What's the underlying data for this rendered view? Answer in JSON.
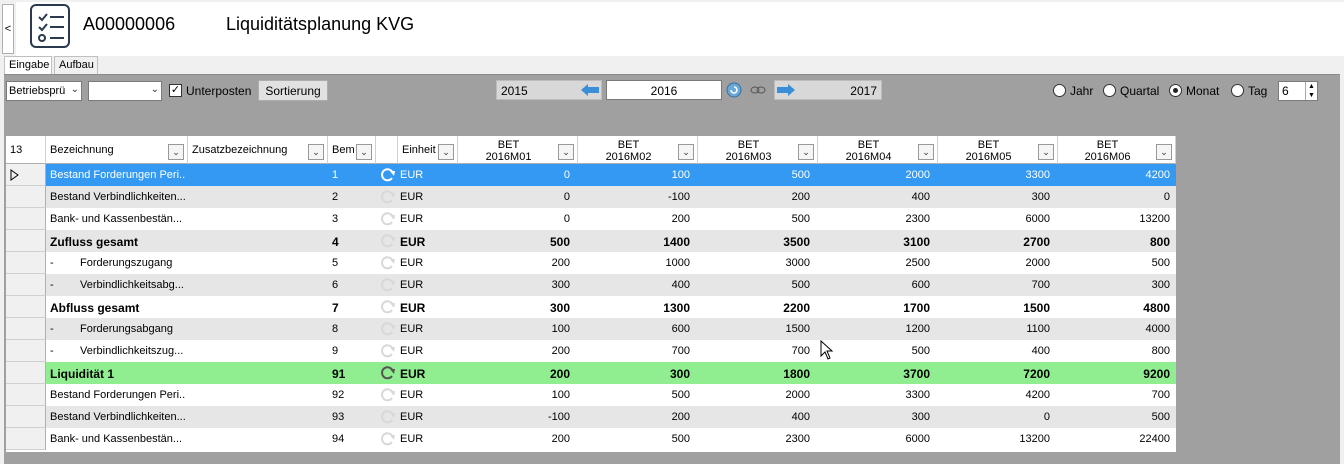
{
  "window": {
    "collapse_label": "<",
    "doc_id": "A00000006",
    "doc_title": "Liquiditätsplanung KVG",
    "icon": "checklist-icon"
  },
  "tabs": [
    {
      "label": "Eingabe",
      "active": true
    },
    {
      "label": "Aufbau",
      "active": false
    }
  ],
  "toolbar": {
    "select1_value": "Betriebsprü",
    "select2_value": "",
    "unterposten_checked": true,
    "unterposten_label": "Unterposten",
    "sort_label": "Sortierung",
    "year_prev": "2015",
    "year_current": "2016",
    "year_next": "2017",
    "radio_jahr": "Jahr",
    "radio_quartal": "Quartal",
    "radio_monat": "Monat",
    "radio_tag": "Tag",
    "selected_period": "Monat",
    "spin_value": "6"
  },
  "grid": {
    "row_count": "13",
    "headers": {
      "bezeichnung": "Bezeichnung",
      "zusatz": "Zusatzbezeichnung",
      "bem": "Bem",
      "einheit": "Einheit",
      "m01_a": "BET",
      "m01_b": "2016M01",
      "m02_a": "BET",
      "m02_b": "2016M02",
      "m03_a": "BET",
      "m03_b": "2016M03",
      "m04_a": "BET",
      "m04_b": "2016M04",
      "m05_a": "BET",
      "m05_b": "2016M05",
      "m06_a": "BET",
      "m06_b": "2016M06"
    },
    "rows": [
      {
        "name": "Bestand Forderungen Peri...",
        "bem": "1",
        "unit": "EUR",
        "v": [
          "0",
          "100",
          "500",
          "2000",
          "3300",
          "4200"
        ],
        "style": "selected"
      },
      {
        "name": "Bestand Verbindlichkeiten...",
        "bem": "2",
        "unit": "EUR",
        "v": [
          "0",
          "-100",
          "200",
          "400",
          "300",
          "0"
        ],
        "style": "alt"
      },
      {
        "name": "Bank- und Kassenbestän...",
        "bem": "3",
        "unit": "EUR",
        "v": [
          "0",
          "200",
          "500",
          "2300",
          "6000",
          "13200"
        ],
        "style": "plain"
      },
      {
        "name": "Zufluss gesamt",
        "bem": "4",
        "unit": "EUR",
        "v": [
          "500",
          "1400",
          "3500",
          "3100",
          "2700",
          "800"
        ],
        "style": "alt-bold"
      },
      {
        "name": "Forderungszugang",
        "dash": "-",
        "bem": "5",
        "unit": "EUR",
        "v": [
          "200",
          "1000",
          "3000",
          "2500",
          "2000",
          "500"
        ],
        "style": "plain"
      },
      {
        "name": "Verbindlichkeitsabg...",
        "dash": "-",
        "bem": "6",
        "unit": "EUR",
        "v": [
          "300",
          "400",
          "500",
          "600",
          "700",
          "300"
        ],
        "style": "alt"
      },
      {
        "name": "Abfluss gesamt",
        "bem": "7",
        "unit": "EUR",
        "v": [
          "300",
          "1300",
          "2200",
          "1700",
          "1500",
          "4800"
        ],
        "style": "plain-bold"
      },
      {
        "name": "Forderungsabgang",
        "dash": "-",
        "bem": "8",
        "unit": "EUR",
        "v": [
          "100",
          "600",
          "1500",
          "1200",
          "1100",
          "4000"
        ],
        "style": "alt"
      },
      {
        "name": "Verbindlichkeitszug...",
        "dash": "-",
        "bem": "9",
        "unit": "EUR",
        "v": [
          "200",
          "700",
          "700",
          "500",
          "400",
          "800"
        ],
        "style": "plain"
      },
      {
        "name": "Liquidität 1",
        "bem": "91",
        "unit": "EUR",
        "v": [
          "200",
          "300",
          "1800",
          "3700",
          "7200",
          "9200"
        ],
        "style": "green"
      },
      {
        "name": "Bestand Forderungen Peri...",
        "bem": "92",
        "unit": "EUR",
        "v": [
          "100",
          "500",
          "2000",
          "3300",
          "4200",
          "700"
        ],
        "style": "plain"
      },
      {
        "name": "Bestand Verbindlichkeiten...",
        "bem": "93",
        "unit": "EUR",
        "v": [
          "-100",
          "200",
          "400",
          "300",
          "0",
          "500"
        ],
        "style": "alt"
      },
      {
        "name": "Bank- und Kassenbestän...",
        "bem": "94",
        "unit": "EUR",
        "v": [
          "200",
          "500",
          "2300",
          "6000",
          "13200",
          "22400"
        ],
        "style": "plain"
      }
    ]
  },
  "colors": {
    "selected": "#3399f3",
    "green": "#90ee90",
    "alt": "#e6e6e6",
    "plain": "#ffffff"
  }
}
